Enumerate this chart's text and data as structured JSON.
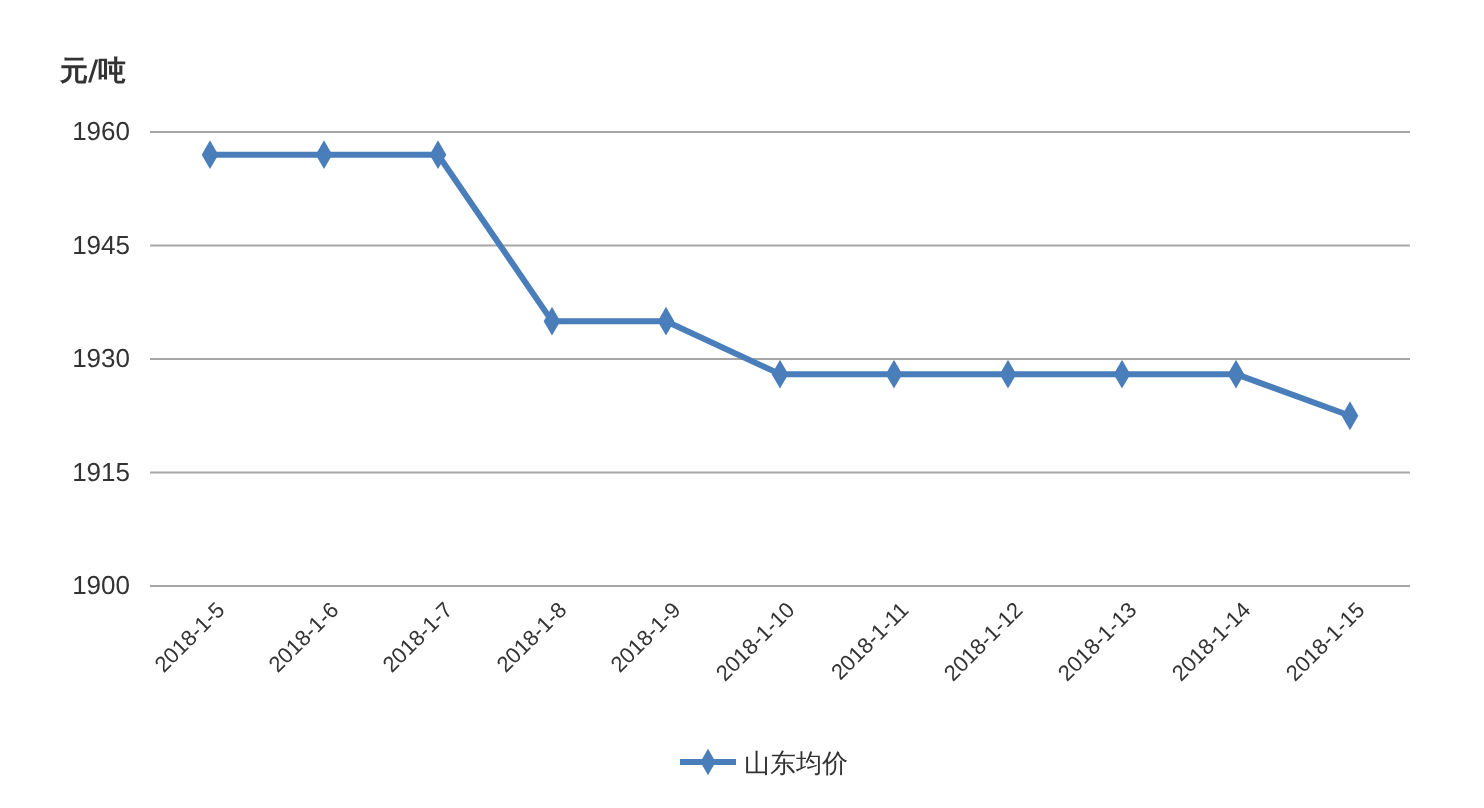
{
  "chart_data": {
    "type": "line",
    "ylabel": "元/吨",
    "categories": [
      "2018-1-5",
      "2018-1-6",
      "2018-1-7",
      "2018-1-8",
      "2018-1-9",
      "2018-1-10",
      "2018-1-11",
      "2018-1-12",
      "2018-1-13",
      "2018-1-14",
      "2018-1-15"
    ],
    "series": [
      {
        "name": "山东均价",
        "color": "#4a7ebb",
        "values": [
          1957,
          1957,
          1957,
          1935,
          1935,
          1928,
          1928,
          1928,
          1928,
          1928,
          1922.5
        ]
      }
    ],
    "ylim": [
      1900,
      1960
    ],
    "yticks": [
      1900,
      1915,
      1930,
      1945,
      1960
    ],
    "grid": "y",
    "legend": "bottom",
    "marker": "diamond",
    "line_style": "solid"
  }
}
